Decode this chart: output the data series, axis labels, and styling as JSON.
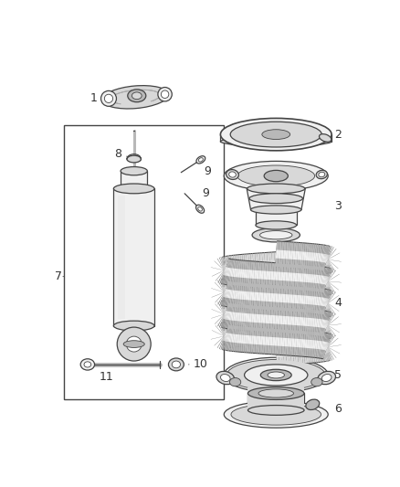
{
  "bg_color": "#ffffff",
  "line_color": "#444444",
  "fill_light": "#f0f0f0",
  "fill_mid": "#d8d8d8",
  "fill_dark": "#b8b8b8",
  "fill_darker": "#999999",
  "spring_tube_color": "#cccccc",
  "spring_dark": "#888888",
  "spring_light": "#eeeeee"
}
